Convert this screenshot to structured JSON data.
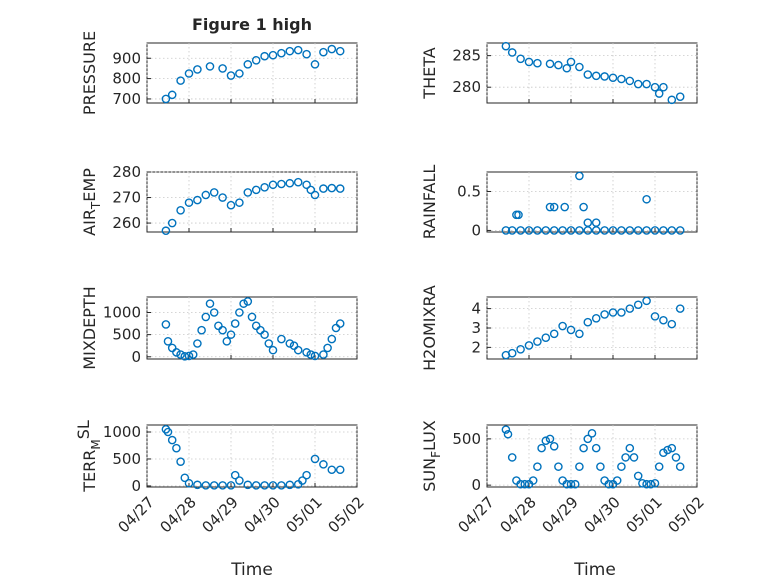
{
  "figure_title": "Figure 1 high",
  "colors": {
    "marker": "#0072BD",
    "axis": "#262626",
    "grid": "#c8c8c8",
    "background": "#ffffff"
  },
  "chart_data": [
    {
      "type": "scatter",
      "ylabel": "PRESSURE",
      "ylim": [
        680,
        975
      ],
      "yticks": [
        700,
        800,
        900
      ],
      "ytick_labels": [
        "700",
        "800",
        "900"
      ],
      "grid": true,
      "x": [
        0.45,
        0.6,
        0.8,
        1.0,
        1.2,
        1.5,
        1.8,
        2.0,
        2.2,
        2.4,
        2.6,
        2.8,
        3.0,
        3.2,
        3.4,
        3.6,
        3.8,
        4.0,
        4.2,
        4.4,
        4.6
      ],
      "y": [
        700,
        720,
        790,
        825,
        845,
        860,
        850,
        815,
        825,
        870,
        890,
        910,
        915,
        925,
        935,
        940,
        920,
        870,
        930,
        945,
        935
      ]
    },
    {
      "type": "scatter",
      "ylabel": "THETA",
      "ylim": [
        277.5,
        287
      ],
      "yticks": [
        280,
        285
      ],
      "ytick_labels": [
        "280",
        "285"
      ],
      "grid": true,
      "x": [
        0.45,
        0.6,
        0.8,
        1.0,
        1.2,
        1.5,
        1.7,
        1.9,
        2.0,
        2.2,
        2.4,
        2.6,
        2.8,
        3.0,
        3.2,
        3.4,
        3.6,
        3.8,
        4.0,
        4.1,
        4.2,
        4.4,
        4.6
      ],
      "y": [
        286.5,
        285.5,
        284.5,
        284,
        283.8,
        283.7,
        283.5,
        283,
        284,
        283.2,
        282,
        281.8,
        281.7,
        281.5,
        281.3,
        281,
        280.5,
        280.5,
        280,
        279,
        280,
        278,
        278.5
      ]
    },
    {
      "type": "scatter",
      "ylabel": "AIR",
      "ylabel_sub": "T",
      "ylabel_rest": "EMP",
      "ylim": [
        256.5,
        280
      ],
      "yticks": [
        260,
        270,
        280
      ],
      "ytick_labels": [
        "260",
        "270",
        "280"
      ],
      "grid": true,
      "x": [
        0.45,
        0.6,
        0.8,
        1.0,
        1.2,
        1.4,
        1.6,
        1.8,
        2.0,
        2.2,
        2.4,
        2.6,
        2.8,
        3.0,
        3.2,
        3.4,
        3.6,
        3.8,
        3.9,
        4.0,
        4.2,
        4.4,
        4.6
      ],
      "y": [
        257,
        260,
        265,
        268,
        269,
        271,
        272,
        270,
        267,
        268,
        272,
        273,
        274,
        275,
        275.3,
        275.6,
        276,
        275,
        273,
        271,
        273.5,
        273.7,
        273.5
      ]
    },
    {
      "type": "scatter",
      "ylabel": "RAINFALL",
      "ylim": [
        -0.02,
        0.75
      ],
      "yticks": [
        0,
        0.5
      ],
      "ytick_labels": [
        "0",
        "0.5"
      ],
      "grid": true,
      "x": [
        0.45,
        0.6,
        0.8,
        1.0,
        1.2,
        1.4,
        1.6,
        1.8,
        2.0,
        2.2,
        2.4,
        2.6,
        2.8,
        3.0,
        3.2,
        3.4,
        3.6,
        3.8,
        4.0,
        4.2,
        4.4,
        4.6,
        0.7,
        0.75,
        1.5,
        1.6,
        1.85,
        2.2,
        2.4,
        2.6,
        3.8,
        2.3
      ],
      "y": [
        0,
        0,
        0,
        0,
        0,
        0,
        0,
        0,
        0,
        0,
        0,
        0,
        0,
        0,
        0,
        0,
        0,
        0,
        0,
        0,
        0,
        0,
        0.2,
        0.2,
        0.3,
        0.3,
        0.3,
        0.7,
        0.1,
        0.1,
        0.4,
        0.3
      ]
    },
    {
      "type": "scatter",
      "ylabel": "MIXDEPTH",
      "ylim": [
        -50,
        1350
      ],
      "yticks": [
        0,
        500,
        1000
      ],
      "ytick_labels": [
        "0",
        "500",
        "1000"
      ],
      "grid": true,
      "x": [
        0.45,
        0.5,
        0.6,
        0.7,
        0.8,
        0.9,
        1.0,
        1.1,
        1.2,
        1.3,
        1.4,
        1.5,
        1.6,
        1.7,
        1.8,
        1.9,
        2.0,
        2.1,
        2.2,
        2.3,
        2.4,
        2.5,
        2.6,
        2.7,
        2.8,
        2.9,
        3.0,
        3.2,
        3.4,
        3.5,
        3.6,
        3.8,
        3.9,
        4.0,
        4.2,
        4.3,
        4.4,
        4.5,
        4.6
      ],
      "y": [
        730,
        350,
        200,
        100,
        50,
        10,
        20,
        50,
        300,
        600,
        900,
        1200,
        1000,
        700,
        600,
        350,
        500,
        750,
        1000,
        1200,
        1250,
        900,
        700,
        600,
        500,
        300,
        150,
        400,
        300,
        250,
        150,
        100,
        50,
        20,
        50,
        200,
        400,
        650,
        750
      ]
    },
    {
      "type": "scatter",
      "ylabel": "H2OMIXRA",
      "ylim": [
        1.4,
        4.6
      ],
      "yticks": [
        2,
        3,
        4
      ],
      "ytick_labels": [
        "2",
        "3",
        "4"
      ],
      "grid": true,
      "x": [
        0.45,
        0.6,
        0.8,
        1.0,
        1.2,
        1.4,
        1.6,
        1.8,
        2.0,
        2.2,
        2.4,
        2.6,
        2.8,
        3.0,
        3.2,
        3.4,
        3.6,
        3.8,
        4.0,
        4.2,
        4.4,
        4.6
      ],
      "y": [
        1.6,
        1.7,
        1.9,
        2.1,
        2.3,
        2.5,
        2.7,
        3.1,
        2.9,
        2.7,
        3.3,
        3.5,
        3.7,
        3.8,
        3.8,
        4,
        4.2,
        4.4,
        3.6,
        3.4,
        3.2,
        4.0
      ]
    },
    {
      "type": "scatter",
      "ylabel": "TERR",
      "ylabel_sub": "M",
      "ylabel_sup": "SL",
      "ylim": [
        -20,
        1130
      ],
      "yticks": [
        0,
        500,
        1000
      ],
      "ytick_labels": [
        "0",
        "500",
        "1000"
      ],
      "grid": true,
      "x": [
        0.45,
        0.5,
        0.6,
        0.7,
        0.8,
        0.9,
        1.0,
        1.2,
        1.4,
        1.6,
        1.8,
        2.0,
        2.1,
        2.2,
        2.4,
        2.6,
        2.8,
        3.0,
        3.2,
        3.4,
        3.6,
        3.7,
        3.8,
        4.0,
        4.2,
        4.4,
        4.6
      ],
      "y": [
        1050,
        1000,
        850,
        700,
        450,
        150,
        50,
        20,
        10,
        10,
        10,
        10,
        200,
        100,
        20,
        10,
        10,
        10,
        10,
        20,
        30,
        100,
        200,
        500,
        400,
        300,
        300
      ]
    },
    {
      "type": "scatter",
      "ylabel": "SUN",
      "ylabel_sub": "F",
      "ylabel_rest": "LUX",
      "ylim": [
        -20,
        650
      ],
      "yticks": [
        0,
        500
      ],
      "ytick_labels": [
        "0",
        "500"
      ],
      "grid": true,
      "x": [
        0.45,
        0.5,
        0.6,
        0.7,
        0.8,
        0.9,
        1.0,
        1.1,
        1.2,
        1.3,
        1.4,
        1.5,
        1.6,
        1.7,
        1.8,
        1.9,
        2.0,
        2.1,
        2.2,
        2.3,
        2.4,
        2.5,
        2.6,
        2.7,
        2.8,
        2.9,
        3.0,
        3.1,
        3.2,
        3.3,
        3.4,
        3.5,
        3.6,
        3.7,
        3.8,
        3.9,
        4.0,
        4.1,
        4.2,
        4.3,
        4.4,
        4.5,
        4.6
      ],
      "y": [
        600,
        550,
        300,
        50,
        10,
        10,
        10,
        50,
        200,
        400,
        480,
        500,
        420,
        200,
        50,
        10,
        10,
        10,
        200,
        400,
        500,
        560,
        400,
        200,
        50,
        10,
        10,
        50,
        200,
        300,
        400,
        300,
        100,
        20,
        10,
        10,
        20,
        200,
        350,
        380,
        400,
        300,
        200
      ]
    }
  ],
  "shared_x": {
    "xlim": [
      0,
      5
    ],
    "ticks": [
      0,
      1,
      2,
      3,
      4,
      5
    ],
    "tick_labels": [
      "04/27",
      "04/28",
      "04/29",
      "04/30",
      "05/01",
      "05/02"
    ],
    "xlabel": "Time"
  }
}
